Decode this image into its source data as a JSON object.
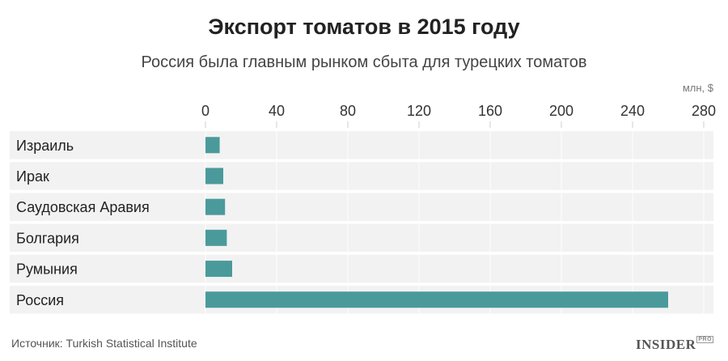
{
  "header": {
    "title": "Экспорт томатов в 2015 году",
    "subtitle": "Россия была главным рынком сбыта для турецких томатов"
  },
  "footer": {
    "source": "Источник: Turkish Statistical Institute",
    "brand": "INSIDER",
    "brand_sup": "PRO"
  },
  "chart_data": {
    "type": "bar",
    "orientation": "horizontal",
    "title": "Экспорт томатов в 2015 году",
    "subtitle": "Россия была главным рынком сбыта для турецких томатов",
    "unit": "млн, $",
    "categories": [
      "Израиль",
      "Ирак",
      "Саудовская Аравия",
      "Болгария",
      "Румыния",
      "Россия"
    ],
    "values": [
      8,
      10,
      11,
      12,
      15,
      260
    ],
    "xlim": [
      0,
      280
    ],
    "ticks": [
      0,
      40,
      80,
      120,
      160,
      200,
      240,
      280
    ],
    "tick_labels": [
      "0",
      "40",
      "80",
      "120",
      "160",
      "200",
      "240",
      "280"
    ],
    "grid": true,
    "colors": {
      "bar": "#4b9a9b",
      "row_band": "#f2f2f2",
      "grid": "#ffffff"
    }
  }
}
